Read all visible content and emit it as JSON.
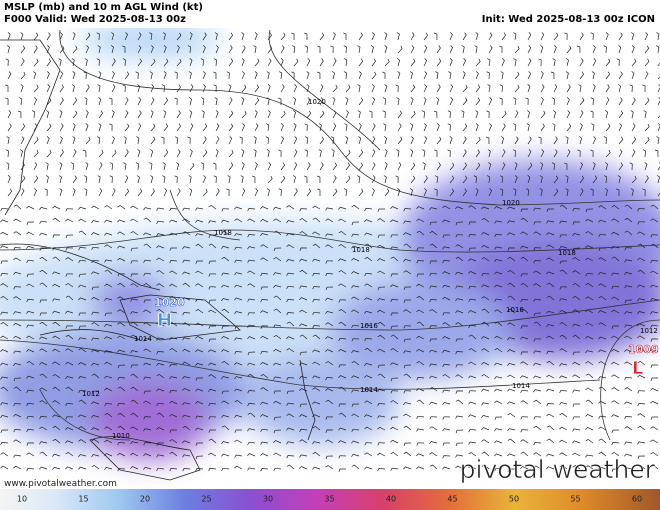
{
  "header": {
    "title": "MSLP (mb) and 10 m AGL Wind (kt)",
    "valid": "F000 Valid: Wed 2025-08-13 00z",
    "init": "Init: Wed 2025-08-13 00z ICON"
  },
  "isobar_labels": [
    "1020",
    "1020",
    "1018",
    "1018",
    "1018",
    "1016",
    "1016",
    "1014",
    "1014",
    "1014",
    "1012",
    "1012",
    "1010"
  ],
  "pressure_centers": [
    {
      "label": "H",
      "value": "1020"
    },
    {
      "label": "L",
      "value": "1009"
    }
  ],
  "watermark": "pivotal weather",
  "url": "www.pivotalweather.com",
  "colorbar": {
    "ticks": [
      10,
      15,
      20,
      25,
      30,
      35,
      40,
      45,
      50,
      55,
      60
    ]
  }
}
